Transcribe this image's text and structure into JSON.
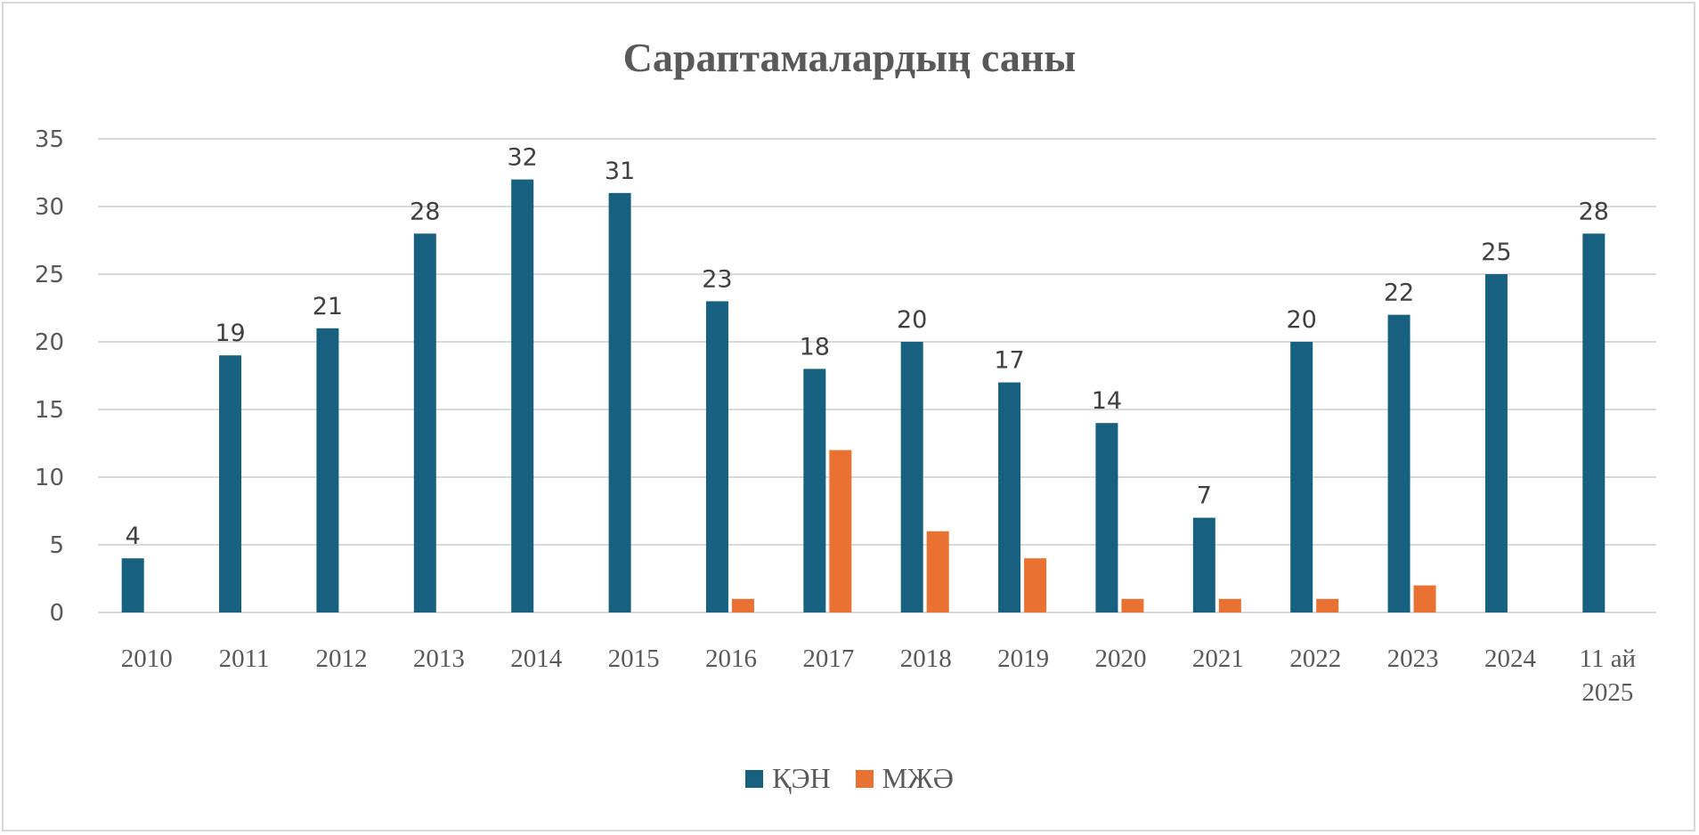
{
  "chart_data": {
    "type": "bar",
    "title": "Сараптамалардың саны",
    "categories": [
      "2010",
      "2011",
      "2012",
      "2013",
      "2014",
      "2015",
      "2016",
      "2017",
      "2018",
      "2019",
      "2020",
      "2021",
      "2022",
      "2023",
      "2024",
      "11 ай\n2025"
    ],
    "series": [
      {
        "name": "ҚЭН",
        "color": "#17607f",
        "values": [
          4,
          19,
          21,
          28,
          32,
          31,
          23,
          18,
          20,
          17,
          14,
          7,
          20,
          22,
          25,
          28
        ],
        "data_labels": true
      },
      {
        "name": "МЖӘ",
        "color": "#e97132",
        "values": [
          0,
          0,
          0,
          0,
          0,
          0,
          1,
          12,
          6,
          4,
          1,
          1,
          1,
          2,
          0,
          0
        ],
        "data_labels": false
      }
    ],
    "ylim": [
      0,
      35
    ],
    "yticks": [
      0,
      5,
      10,
      15,
      20,
      25,
      30,
      35
    ],
    "grid": true,
    "legend": "bottom",
    "xlabel": "",
    "ylabel": ""
  }
}
